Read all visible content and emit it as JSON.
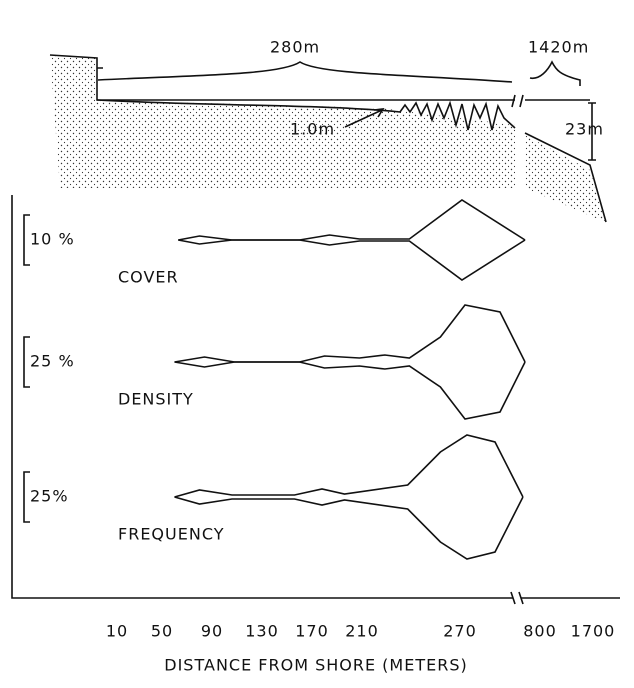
{
  "chart_data": {
    "type": "kite",
    "annotations": [
      "280m",
      "1420m",
      "1.0m",
      "23m"
    ],
    "x_label": "DISTANCE FROM SHORE (METERS)",
    "xticks": [
      10,
      50,
      90,
      130,
      170,
      210,
      270,
      800,
      1700
    ],
    "series": [
      {
        "name": "COVER",
        "scale_bar": {
          "value": 10,
          "label": "10 %"
        },
        "x": [
          63,
          80,
          106,
          160,
          184,
          208,
          239,
          283,
          701
        ],
        "values": [
          0,
          0.8,
          0,
          0,
          1,
          0.2,
          0.2,
          8,
          0
        ]
      },
      {
        "name": "DENSITY",
        "scale_bar": {
          "value": 25,
          "label": "25 %"
        },
        "x": [
          60,
          84,
          108,
          160,
          180,
          208,
          224,
          239,
          258,
          303,
          535,
          701
        ],
        "values": [
          0,
          2.5,
          0,
          0,
          3,
          2,
          3.5,
          2,
          12.5,
          28.5,
          25,
          0
        ]
      },
      {
        "name": "FREQUENCY",
        "scale_bar": {
          "value": 25,
          "label": "25%"
        },
        "x": [
          60,
          80,
          106,
          156,
          178,
          196,
          238,
          258,
          316,
          502,
          687
        ],
        "values": [
          0,
          3.5,
          1,
          1,
          4,
          1.5,
          6,
          22.5,
          31,
          27.5,
          0
        ]
      }
    ]
  }
}
